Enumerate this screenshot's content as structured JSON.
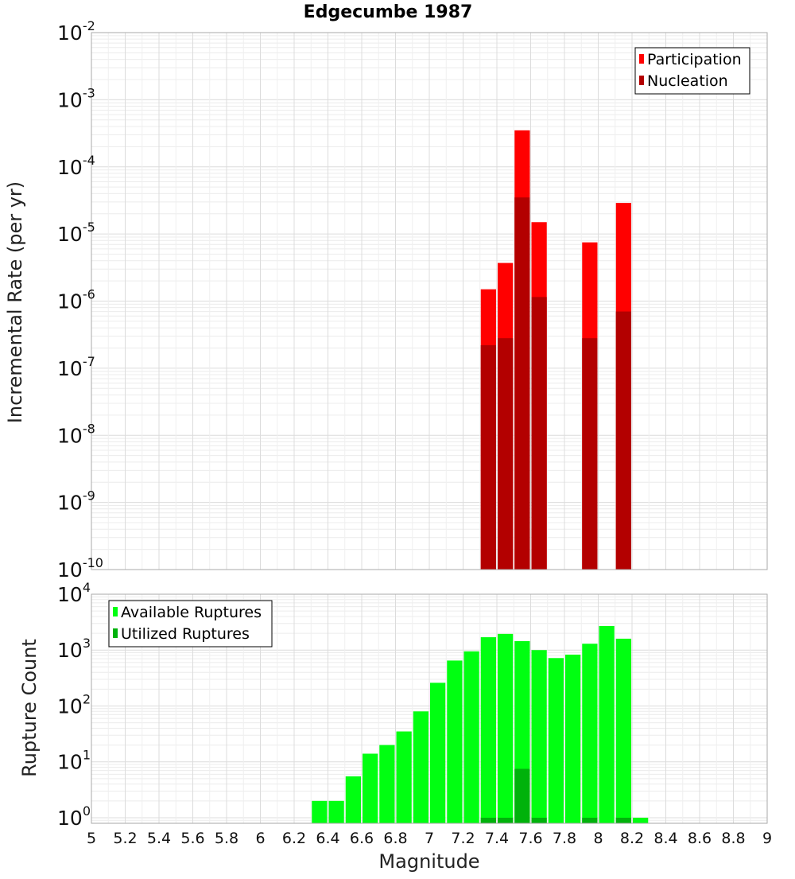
{
  "chart_data": [
    {
      "type": "bar",
      "title": "Edgecumbe 1987",
      "xlabel": "",
      "ylabel": "Incremental Rate (per yr)",
      "xlim": [
        5,
        9
      ],
      "yscale": "log",
      "ylim_exponents": [
        -10,
        -2
      ],
      "ytick_exponents": [
        -10,
        -9,
        -8,
        -7,
        -6,
        -5,
        -4,
        -3,
        -2
      ],
      "grid": true,
      "legend_position": "top-right",
      "bin_width": 0.1,
      "series": [
        {
          "name": "Participation",
          "color": "#ff0000",
          "points": [
            {
              "x": 7.35,
              "y": 1.5e-06
            },
            {
              "x": 7.45,
              "y": 3.7e-06
            },
            {
              "x": 7.55,
              "y": 0.00035
            },
            {
              "x": 7.65,
              "y": 1.5e-05
            },
            {
              "x": 7.95,
              "y": 7.5e-06
            },
            {
              "x": 8.15,
              "y": 2.9e-05
            }
          ]
        },
        {
          "name": "Nucleation",
          "color": "#b30000",
          "points": [
            {
              "x": 7.35,
              "y": 2.2e-07
            },
            {
              "x": 7.45,
              "y": 2.8e-07
            },
            {
              "x": 7.55,
              "y": 3.5e-05
            },
            {
              "x": 7.65,
              "y": 1.15e-06
            },
            {
              "x": 7.95,
              "y": 2.8e-07
            },
            {
              "x": 8.15,
              "y": 7e-07
            }
          ]
        }
      ]
    },
    {
      "type": "bar",
      "title": "",
      "xlabel": "Magnitude",
      "ylabel": "Rupture Count",
      "xlim": [
        5,
        9
      ],
      "xticks": [
        "5",
        "5.2",
        "5.4",
        "5.6",
        "5.8",
        "6",
        "6.2",
        "6.4",
        "6.6",
        "6.8",
        "7",
        "7.2",
        "7.4",
        "7.6",
        "7.8",
        "8",
        "8.2",
        "8.4",
        "8.6",
        "8.8",
        "9"
      ],
      "yscale": "log",
      "ylim_exponents": [
        -0.1,
        4
      ],
      "ytick_exponents": [
        0,
        1,
        2,
        3,
        4
      ],
      "grid": true,
      "legend_position": "top-left",
      "bin_width": 0.1,
      "series": [
        {
          "name": "Available Ruptures",
          "color": "#00ff11",
          "points": [
            {
              "x": 6.35,
              "y": 2
            },
            {
              "x": 6.45,
              "y": 2
            },
            {
              "x": 6.55,
              "y": 5.5
            },
            {
              "x": 6.65,
              "y": 14
            },
            {
              "x": 6.75,
              "y": 20
            },
            {
              "x": 6.85,
              "y": 35
            },
            {
              "x": 6.95,
              "y": 80
            },
            {
              "x": 7.05,
              "y": 260
            },
            {
              "x": 7.15,
              "y": 650
            },
            {
              "x": 7.25,
              "y": 950
            },
            {
              "x": 7.35,
              "y": 1700
            },
            {
              "x": 7.45,
              "y": 1950
            },
            {
              "x": 7.55,
              "y": 1450
            },
            {
              "x": 7.65,
              "y": 1000
            },
            {
              "x": 7.75,
              "y": 720
            },
            {
              "x": 7.85,
              "y": 830
            },
            {
              "x": 7.95,
              "y": 1300
            },
            {
              "x": 8.05,
              "y": 2700
            },
            {
              "x": 8.15,
              "y": 1600
            },
            {
              "x": 8.25,
              "y": 1
            }
          ]
        },
        {
          "name": "Utilized Ruptures",
          "color": "#00b20b",
          "points": [
            {
              "x": 7.35,
              "y": 1
            },
            {
              "x": 7.45,
              "y": 1
            },
            {
              "x": 7.55,
              "y": 7.5
            },
            {
              "x": 7.65,
              "y": 1
            },
            {
              "x": 7.95,
              "y": 1
            },
            {
              "x": 8.15,
              "y": 1
            }
          ]
        }
      ]
    }
  ]
}
